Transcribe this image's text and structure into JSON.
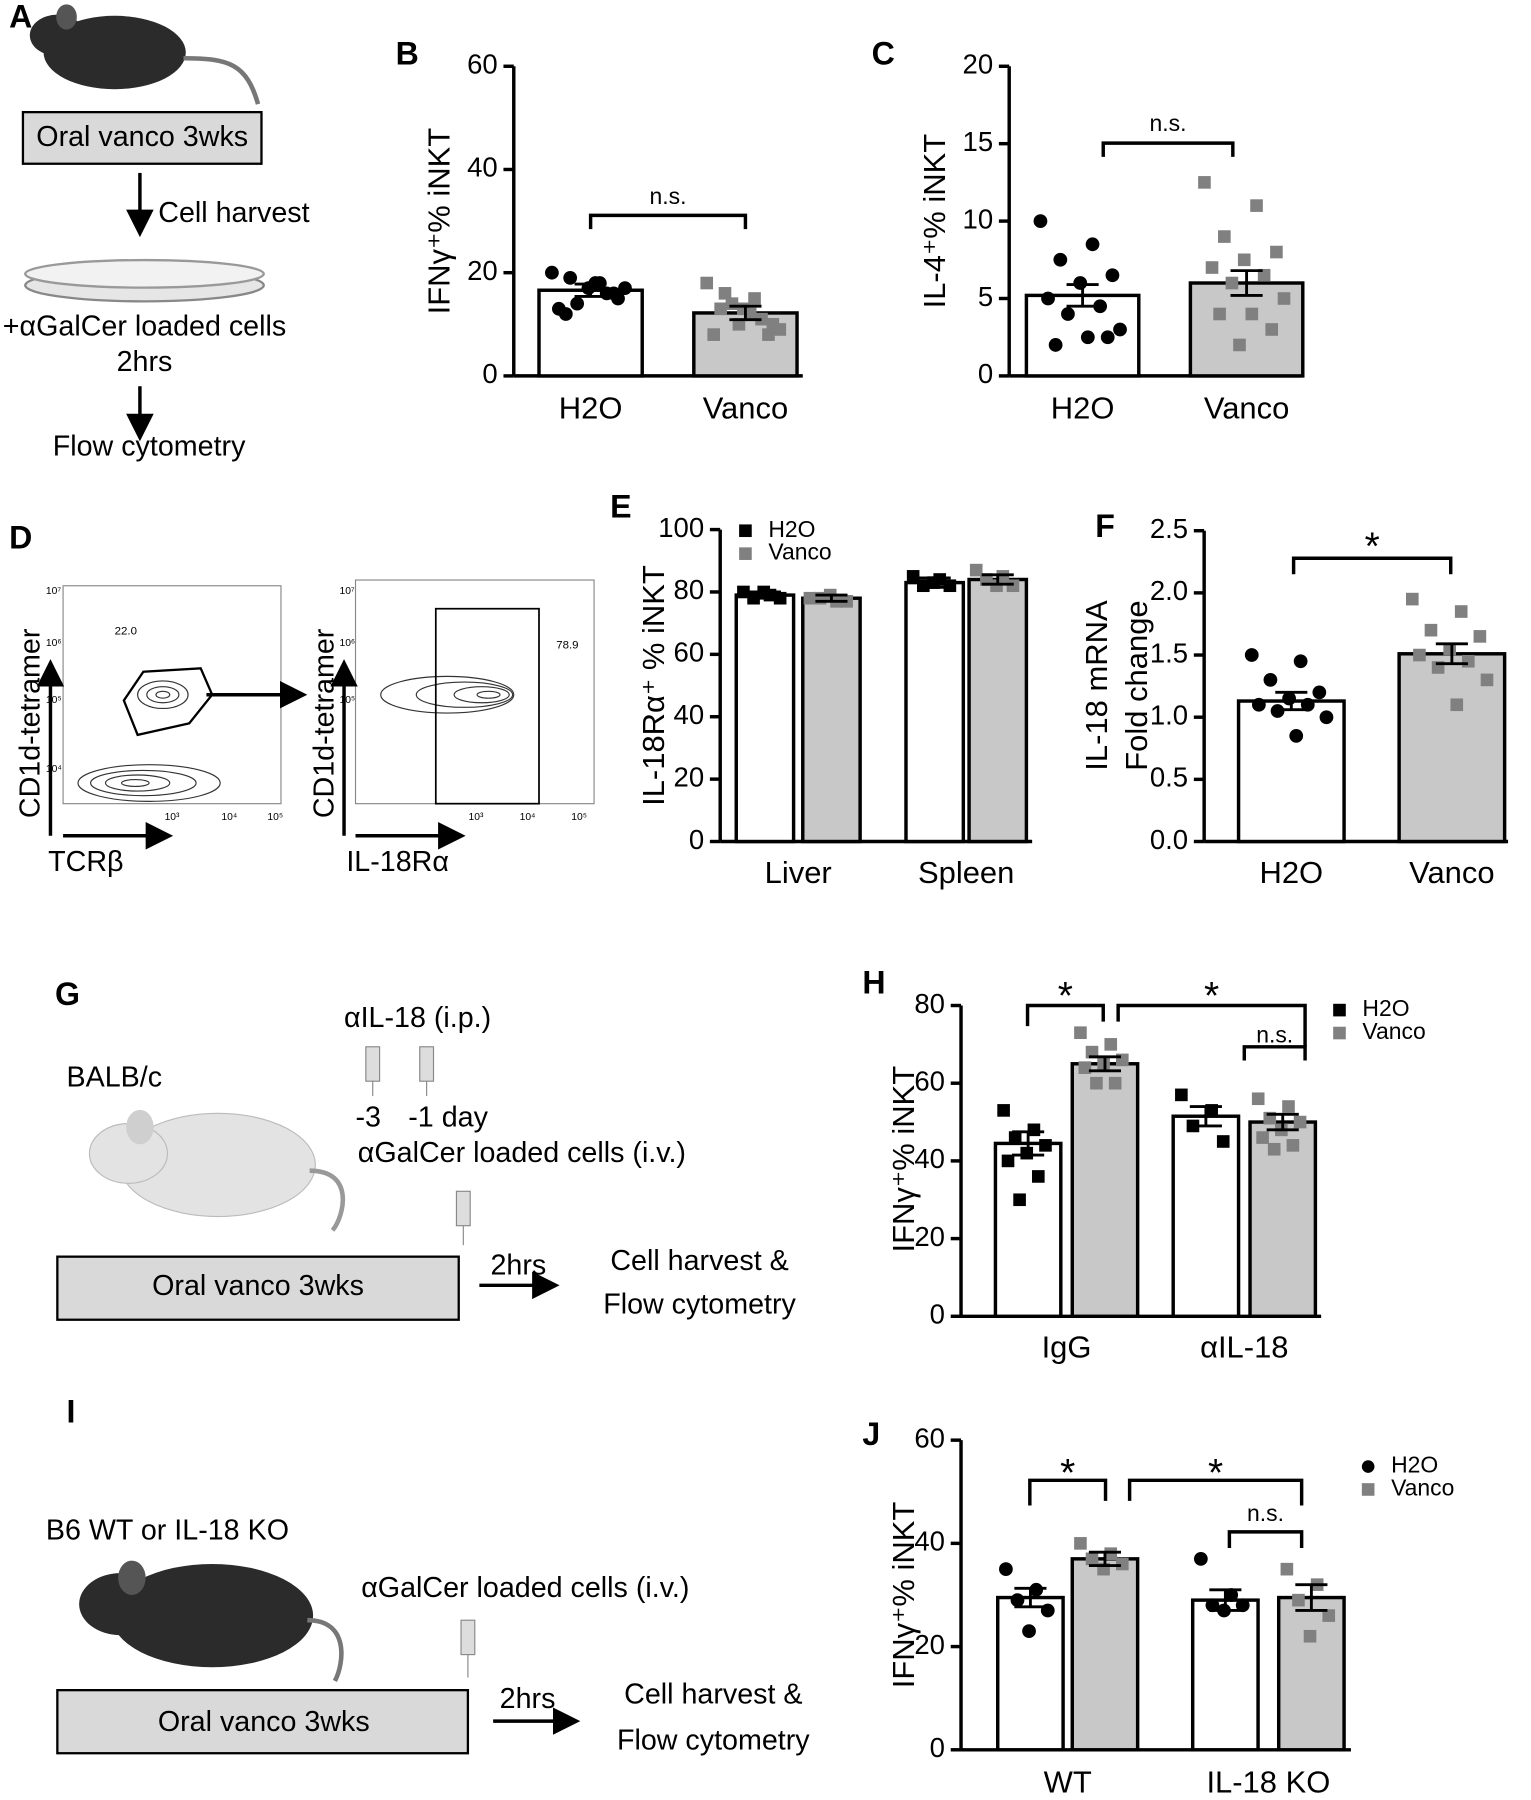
{
  "chart_data": [
    {
      "type": "bar",
      "label": "B",
      "ylabel": "IFNγ⁺% iNKT",
      "categories": [
        "H2O",
        "Vanco"
      ],
      "values": [
        16.6,
        12.2
      ],
      "errors": [
        1.2,
        1.3
      ],
      "colors": [
        "#ffffff",
        "#c8c8c8"
      ],
      "point_colors": [
        "#000000",
        "#808080"
      ],
      "markers": [
        "circle",
        "square"
      ],
      "points": [
        [
          20,
          18,
          19,
          15,
          17,
          13,
          16,
          14,
          17,
          18,
          12,
          16
        ],
        [
          18,
          15,
          16,
          10,
          13,
          8,
          11,
          14,
          9,
          12,
          13,
          8,
          10
        ]
      ],
      "ylim": [
        0,
        60
      ],
      "yticks": [
        0,
        20,
        40,
        60
      ],
      "annotations": [
        "n.s."
      ]
    },
    {
      "type": "bar",
      "label": "C",
      "ylabel": "IL-4⁺% iNKT",
      "categories": [
        "H2O",
        "Vanco"
      ],
      "values": [
        5.2,
        6.0
      ],
      "errors": [
        0.7,
        0.8
      ],
      "colors": [
        "#ffffff",
        "#c8c8c8"
      ],
      "point_colors": [
        "#000000",
        "#808080"
      ],
      "markers": [
        "circle",
        "square"
      ],
      "points": [
        [
          10,
          8.5,
          7.5,
          6.5,
          6,
          5,
          4.5,
          4,
          3,
          2.5,
          2,
          2.5
        ],
        [
          12.5,
          11,
          9,
          8,
          7.5,
          7,
          6.5,
          6,
          5,
          4,
          4,
          3,
          2
        ]
      ],
      "ylim": [
        0,
        20
      ],
      "yticks": [
        0,
        5,
        10,
        15,
        20
      ],
      "annotations": [
        "n.s."
      ]
    },
    {
      "type": "bar",
      "label": "E",
      "ylabel": "IL-18Rα⁺ % iNKT",
      "categories": [
        "Liver",
        "Spleen"
      ],
      "series": [
        {
          "name": "H2O",
          "color": "#ffffff",
          "point_color": "#000000",
          "marker": "square",
          "values": [
            79,
            83
          ],
          "errors": [
            1,
            1.5
          ],
          "points": [
            [
              80,
              79,
              78,
              78,
              80
            ],
            [
              85,
              84,
              82,
              82,
              83
            ]
          ]
        },
        {
          "name": "Vanco",
          "color": "#c8c8c8",
          "point_color": "#808080",
          "marker": "square",
          "values": [
            78,
            84
          ],
          "errors": [
            1,
            1.5
          ],
          "points": [
            [
              78,
              77,
              78,
              77,
              79
            ],
            [
              87,
              85,
              84,
              82,
              82
            ]
          ]
        }
      ],
      "ylim": [
        0,
        100
      ],
      "yticks": [
        0,
        20,
        40,
        60,
        80,
        100
      ],
      "legend": "upper left"
    },
    {
      "type": "bar",
      "label": "F",
      "ylabel": [
        "IL-18 mRNA",
        "Fold change"
      ],
      "categories": [
        "H2O",
        "Vanco"
      ],
      "values": [
        1.13,
        1.51
      ],
      "errors": [
        0.07,
        0.08
      ],
      "colors": [
        "#ffffff",
        "#c8c8c8"
      ],
      "point_colors": [
        "#000000",
        "#808080"
      ],
      "markers": [
        "circle",
        "square"
      ],
      "points": [
        [
          1.5,
          1.45,
          1.3,
          1.2,
          1.15,
          1.1,
          1.1,
          1.05,
          1.0,
          0.85
        ],
        [
          1.95,
          1.85,
          1.7,
          1.65,
          1.55,
          1.5,
          1.45,
          1.4,
          1.3,
          1.1
        ]
      ],
      "ylim": [
        0,
        2.5
      ],
      "yticks": [
        {
          "value": 0,
          "label": "0.0"
        },
        0.5,
        {
          "value": 1,
          "label": "1.0"
        },
        1.5,
        {
          "value": 2,
          "label": "2.0"
        },
        2.5
      ],
      "annotations": [
        "*"
      ]
    },
    {
      "type": "bar",
      "label": "H",
      "ylabel": "IFNγ⁺% iNKT",
      "categories": [
        "IgG",
        "αIL-18"
      ],
      "series": [
        {
          "name": "H2O",
          "color": "#ffffff",
          "point_color": "#000000",
          "marker": "square",
          "values": [
            44.5,
            51.5
          ],
          "errors": [
            3,
            2.5
          ],
          "points": [
            [
              53,
              48,
              46,
              44,
              42,
              40,
              36,
              30
            ],
            [
              57,
              53,
              49,
              45
            ]
          ]
        },
        {
          "name": "Vanco",
          "color": "#c8c8c8",
          "point_color": "#808080",
          "marker": "square",
          "values": [
            65,
            50
          ],
          "errors": [
            1.8,
            2
          ],
          "points": [
            [
              73,
              70,
              68,
              66,
              65,
              64,
              60,
              60
            ],
            [
              56,
              54,
              51,
              50,
              48,
              46,
              44,
              43
            ]
          ]
        }
      ],
      "ylim": [
        0,
        80
      ],
      "yticks": [
        0,
        20,
        40,
        60,
        80
      ],
      "legend": "upper right",
      "annotations": [
        "*",
        "*",
        "n.s."
      ]
    },
    {
      "type": "bar",
      "label": "J",
      "ylabel": "IFNγ⁺% iNKT",
      "categories": [
        "WT",
        "IL-18 KO"
      ],
      "series": [
        {
          "name": "H2O",
          "color": "#ffffff",
          "point_color": "#000000",
          "marker": "circle",
          "values": [
            29.5,
            29
          ],
          "errors": [
            1.8,
            2
          ],
          "points": [
            [
              35,
              31,
              29,
              27,
              23
            ],
            [
              37,
              30,
              28,
              28,
              27
            ]
          ]
        },
        {
          "name": "Vanco",
          "color": "#c8c8c8",
          "point_color": "#808080",
          "marker": "square",
          "values": [
            37,
            29.5
          ],
          "errors": [
            1.3,
            2.5
          ],
          "points": [
            [
              40,
              38,
              37,
              36,
              35
            ],
            [
              35,
              32,
              29,
              26,
              22
            ]
          ]
        }
      ],
      "ylim": [
        0,
        60
      ],
      "yticks": [
        0,
        20,
        40,
        60
      ],
      "legend": "upper right",
      "annotations": [
        "*",
        "*",
        "n.s."
      ]
    }
  ],
  "diagrams": {
    "A": {
      "label": "A",
      "box": "Oral vanco 3wks",
      "step1": "Cell harvest",
      "step2": [
        "+αGalCer loaded cells",
        "2hrs"
      ],
      "step3": "Flow cytometry"
    },
    "D": {
      "label": "D",
      "plots": [
        {
          "ylabel": "CD1d-tetramer",
          "xlabel": "TCRβ",
          "gate": "22.0"
        },
        {
          "ylabel": "CD1d-tetramer",
          "xlabel": "IL-18Rα",
          "gate": "78.9"
        }
      ],
      "xticks": [
        "10³",
        "10⁴",
        "10⁵"
      ],
      "yticks": [
        "10⁴",
        "10⁵",
        "10⁶",
        "10⁷"
      ]
    },
    "G": {
      "label": "G",
      "strain": "BALB/c",
      "antibody": "αIL-18 (i.p.)",
      "days": [
        "-3",
        "-1 day"
      ],
      "cells": "αGalCer loaded cells (i.v.)",
      "box": "Oral vanco 3wks",
      "time": "2hrs",
      "outcome": [
        "Cell harvest &",
        "Flow cytometry"
      ]
    },
    "I": {
      "label": "I",
      "strain": "B6 WT or IL-18 KO",
      "cells": "αGalCer loaded cells (i.v.)",
      "box": "Oral vanco 3wks",
      "time": "2hrs",
      "outcome": [
        "Cell harvest &",
        "Flow cytometry"
      ]
    }
  }
}
